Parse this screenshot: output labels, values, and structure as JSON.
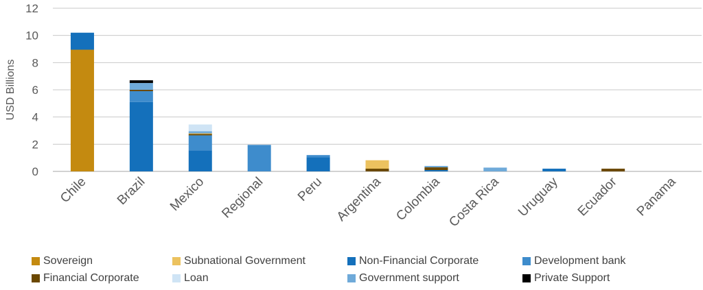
{
  "chart_data": {
    "type": "bar",
    "stacked": true,
    "ylabel": "USD Billions",
    "xlabel": "",
    "ylim": [
      0,
      12
    ],
    "yticks": [
      0,
      2,
      4,
      6,
      8,
      10,
      12
    ],
    "grid": true,
    "legend_position": "bottom",
    "categories": [
      "Chile",
      "Brazil",
      "Mexico",
      "Regional",
      "Peru",
      "Argentina",
      "Colombia",
      "Costa Rica",
      "Uruguay",
      "Ecuador",
      "Panama"
    ],
    "series": [
      {
        "name": "Sovereign",
        "color": "#c48a10",
        "values": [
          8.95,
          0,
          0,
          0,
          0,
          0,
          0,
          0,
          0,
          0,
          0
        ]
      },
      {
        "name": "Subnational Government",
        "color": "#ecc25f",
        "values": [
          0,
          0,
          0.05,
          0,
          0,
          0.62,
          0,
          0,
          0,
          0,
          0
        ]
      },
      {
        "name": "Non-Financial Corporate",
        "color": "#1470bb",
        "values": [
          1.25,
          5.1,
          1.55,
          0,
          1.05,
          0,
          0.1,
          0,
          0.2,
          0,
          0
        ]
      },
      {
        "name": "Development bank",
        "color": "#3e8ccc",
        "values": [
          0,
          0.8,
          1.1,
          1.95,
          0.15,
          0,
          0,
          0,
          0,
          0,
          0
        ]
      },
      {
        "name": "Financial Corporate",
        "color": "#6b4800",
        "values": [
          0,
          0.1,
          0.1,
          0,
          0,
          0.2,
          0.2,
          0,
          0,
          0.2,
          0
        ]
      },
      {
        "name": "Loan",
        "color": "#cfe4f5",
        "values": [
          0,
          0,
          0.5,
          0,
          0,
          0,
          0,
          0,
          0,
          0,
          0
        ]
      },
      {
        "name": "Government support",
        "color": "#6faad9",
        "values": [
          0,
          0.5,
          0.15,
          0,
          0,
          0,
          0.1,
          0.28,
          0,
          0,
          0
        ]
      },
      {
        "name": "Private Support",
        "color": "#000000",
        "values": [
          0,
          0.2,
          0,
          0,
          0,
          0,
          0,
          0,
          0,
          0,
          0
        ]
      }
    ],
    "stack_order": [
      "Sovereign",
      "Subnational Government",
      "Non-Financial Corporate",
      "Development bank",
      "Financial Corporate",
      "Loan",
      "Government support",
      "Private Support"
    ],
    "stack_order_by_category": {
      "Brazil": [
        "Non-Financial Corporate",
        "Development bank",
        "Financial Corporate",
        "Government support",
        "Private Support"
      ],
      "Mexico": [
        "Non-Financial Corporate",
        "Development bank",
        "Financial Corporate",
        "Subnational Government",
        "Government support",
        "Loan"
      ],
      "Argentina": [
        "Financial Corporate",
        "Subnational Government"
      ]
    }
  },
  "legend": [
    {
      "label": "Sovereign",
      "color": "#c48a10"
    },
    {
      "label": "Subnational Government",
      "color": "#ecc25f"
    },
    {
      "label": "Non-Financial Corporate",
      "color": "#1470bb"
    },
    {
      "label": "Development bank",
      "color": "#3e8ccc"
    },
    {
      "label": "Financial Corporate",
      "color": "#6b4800"
    },
    {
      "label": "Loan",
      "color": "#cfe4f5"
    },
    {
      "label": "Government support",
      "color": "#6faad9"
    },
    {
      "label": "Private Support",
      "color": "#000000"
    }
  ]
}
